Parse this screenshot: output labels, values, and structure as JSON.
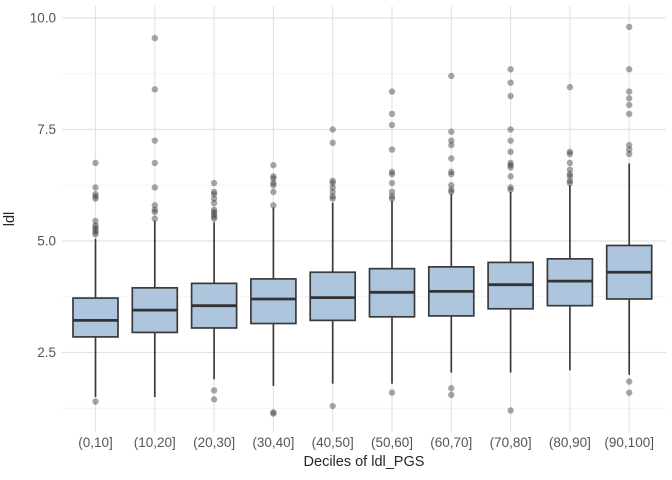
{
  "chart_data": {
    "type": "boxplot",
    "title": "",
    "xlabel": "Deciles of ldl_PGS",
    "ylabel": "ldl",
    "ylim": [
      0.9,
      10.35
    ],
    "grid": true,
    "legend": "none",
    "y_ticks": [
      {
        "value": 2.5,
        "label": "2.5"
      },
      {
        "value": 5.0,
        "label": "5.0"
      },
      {
        "value": 7.5,
        "label": "7.5"
      },
      {
        "value": 10.0,
        "label": "10.0"
      }
    ],
    "y_minor_ticks": [
      1.25,
      3.75,
      6.25,
      8.75
    ],
    "categories": [
      "(0,10]",
      "(10,20]",
      "(20,30]",
      "(30,40]",
      "(40,50]",
      "(50,60]",
      "(60,70]",
      "(70,80]",
      "(80,90]",
      "(90,100]"
    ],
    "boxes": [
      {
        "category": "(0,10]",
        "whisker_low": 1.5,
        "q1": 2.85,
        "median": 3.22,
        "q3": 3.72,
        "whisker_high": 5.05,
        "outliers_high": [
          5.15,
          5.2,
          5.25,
          5.3,
          5.35,
          5.45,
          5.95,
          6.0,
          6.05,
          6.2,
          6.75
        ],
        "outliers_low": [
          1.4
        ]
      },
      {
        "category": "(10,20]",
        "whisker_low": 1.5,
        "q1": 2.95,
        "median": 3.45,
        "q3": 3.95,
        "whisker_high": 5.45,
        "outliers_high": [
          5.5,
          5.65,
          5.7,
          5.8,
          6.2,
          6.75,
          7.25,
          8.4,
          9.55
        ],
        "outliers_low": []
      },
      {
        "category": "(20,30]",
        "whisker_low": 1.9,
        "q1": 3.05,
        "median": 3.55,
        "q3": 4.05,
        "whisker_high": 5.42,
        "outliers_high": [
          5.5,
          5.55,
          5.6,
          5.65,
          5.7,
          5.85,
          5.95,
          6.05,
          6.1,
          6.3
        ],
        "outliers_low": [
          1.45,
          1.65
        ]
      },
      {
        "category": "(30,40]",
        "whisker_low": 1.75,
        "q1": 3.15,
        "median": 3.7,
        "q3": 4.15,
        "whisker_high": 5.75,
        "outliers_high": [
          5.8,
          6.1,
          6.25,
          6.3,
          6.4,
          6.45,
          6.7
        ],
        "outliers_low": [
          1.13,
          1.16
        ]
      },
      {
        "category": "(40,50]",
        "whisker_low": 1.8,
        "q1": 3.22,
        "median": 3.73,
        "q3": 4.3,
        "whisker_high": 5.86,
        "outliers_high": [
          5.95,
          6.0,
          6.1,
          6.2,
          6.3,
          6.35,
          7.2,
          7.5
        ],
        "outliers_low": [
          1.3
        ]
      },
      {
        "category": "(50,60]",
        "whisker_low": 1.8,
        "q1": 3.3,
        "median": 3.85,
        "q3": 4.38,
        "whisker_high": 5.9,
        "outliers_high": [
          5.95,
          6.0,
          6.1,
          6.3,
          6.5,
          6.55,
          7.05,
          7.6,
          7.85,
          8.35
        ],
        "outliers_low": [
          1.6
        ]
      },
      {
        "category": "(60,70]",
        "whisker_low": 2.05,
        "q1": 3.32,
        "median": 3.87,
        "q3": 4.42,
        "whisker_high": 6.05,
        "outliers_high": [
          6.1,
          6.15,
          6.25,
          6.5,
          6.55,
          6.85,
          7.15,
          7.25,
          7.45,
          8.7
        ],
        "outliers_low": [
          1.55,
          1.7
        ]
      },
      {
        "category": "(70,80]",
        "whisker_low": 2.05,
        "q1": 3.48,
        "median": 4.02,
        "q3": 4.52,
        "whisker_high": 6.1,
        "outliers_high": [
          6.15,
          6.2,
          6.45,
          6.65,
          6.7,
          6.75,
          7.0,
          7.25,
          7.5,
          8.25,
          8.55,
          8.85
        ],
        "outliers_low": [
          1.2
        ]
      },
      {
        "category": "(80,90]",
        "whisker_low": 2.1,
        "q1": 3.55,
        "median": 4.1,
        "q3": 4.6,
        "whisker_high": 6.25,
        "outliers_high": [
          6.3,
          6.35,
          6.45,
          6.5,
          6.6,
          6.75,
          6.95,
          7.0,
          8.45
        ],
        "outliers_low": []
      },
      {
        "category": "(90,100]",
        "whisker_low": 2.0,
        "q1": 3.7,
        "median": 4.3,
        "q3": 4.9,
        "whisker_high": 6.74,
        "outliers_high": [
          6.95,
          7.05,
          7.15,
          7.85,
          8.05,
          8.2,
          8.35,
          8.85,
          9.8
        ],
        "outliers_low": [
          1.6,
          1.85
        ]
      }
    ],
    "style": {
      "box_fill": "#adc6dd",
      "box_border": "#3a3a3a",
      "median_color": "#343434",
      "whisker_color": "#3a3a3a",
      "outlier_color": "#3c3c3c",
      "outlier_opacity": 0.45,
      "grid_major": "#e3e3e3",
      "grid_minor": "#f0f0f0",
      "tick_text": "#555555",
      "title_text": "#262626",
      "background": "#ffffff"
    }
  }
}
